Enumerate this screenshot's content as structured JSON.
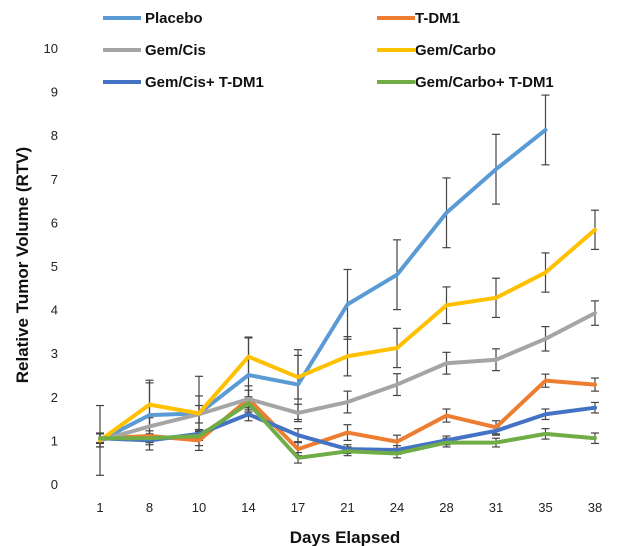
{
  "chart_data": {
    "type": "line",
    "xlabel": "Days Elapsed",
    "ylabel": "Relative Tumor Volume (RTV)",
    "categories": [
      "1",
      "8",
      "10",
      "14",
      "17",
      "21",
      "24",
      "28",
      "31",
      "35",
      "38"
    ],
    "ylim": [
      0,
      10
    ],
    "yticks": [
      0,
      1,
      2,
      3,
      4,
      5,
      6,
      7,
      8,
      9,
      10
    ],
    "grid": false,
    "legend_position": "top",
    "series": [
      {
        "name": "Placebo",
        "color": "#5B9BD5",
        "values": [
          1.0,
          1.58,
          1.62,
          2.5,
          2.28,
          4.12,
          4.8,
          6.22,
          7.22,
          8.12,
          null
        ],
        "errors": [
          0.8,
          0.8,
          0.85,
          0.85,
          0.8,
          0.8,
          0.8,
          0.8,
          0.8,
          0.8,
          null
        ]
      },
      {
        "name": "T-DM1",
        "color": "#ED7D31",
        "values": [
          1.05,
          1.1,
          1.0,
          1.95,
          0.8,
          1.18,
          0.97,
          1.57,
          1.3,
          2.37,
          2.28
        ],
        "errors": [
          0.12,
          0.12,
          0.12,
          0.3,
          0.15,
          0.18,
          0.15,
          0.15,
          0.15,
          0.15,
          0.15
        ]
      },
      {
        "name": "Gem/Cis",
        "color": "#A5A5A5",
        "values": [
          1.0,
          1.32,
          1.6,
          1.95,
          1.63,
          1.88,
          2.28,
          2.77,
          2.85,
          3.33,
          3.92
        ],
        "errors": [
          0.15,
          0.2,
          0.2,
          0.2,
          0.2,
          0.25,
          0.25,
          0.25,
          0.25,
          0.28,
          0.28
        ]
      },
      {
        "name": "Gem/Carbo",
        "color": "#FFC000",
        "values": [
          1.0,
          1.82,
          1.62,
          2.92,
          2.45,
          2.93,
          3.12,
          4.1,
          4.27,
          4.85,
          5.83
        ],
        "errors": [
          0.15,
          0.5,
          0.4,
          0.45,
          0.5,
          0.45,
          0.45,
          0.42,
          0.45,
          0.45,
          0.45
        ]
      },
      {
        "name": "Gem/Cis+ T-DM1",
        "color": "#4472C4",
        "values": [
          1.05,
          1.0,
          1.15,
          1.6,
          1.12,
          0.8,
          0.78,
          1.0,
          1.22,
          1.6,
          1.75
        ],
        "errors": [
          0.1,
          0.1,
          0.1,
          0.15,
          0.15,
          0.1,
          0.1,
          0.1,
          0.1,
          0.12,
          0.12
        ]
      },
      {
        "name": "Gem/Carbo+ T-DM1",
        "color": "#70AD47",
        "values": [
          1.05,
          1.05,
          1.1,
          1.85,
          0.6,
          0.75,
          0.7,
          0.95,
          0.95,
          1.15,
          1.05
        ],
        "errors": [
          0.1,
          0.1,
          0.1,
          0.15,
          0.12,
          0.1,
          0.1,
          0.1,
          0.1,
          0.12,
          0.12
        ]
      }
    ]
  }
}
